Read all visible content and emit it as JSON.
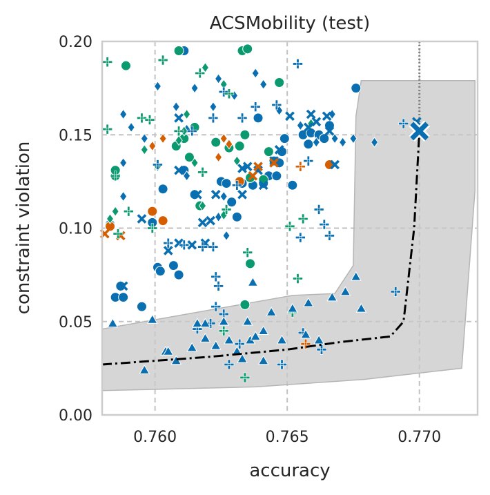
{
  "chart_data": {
    "type": "scatter",
    "title": "ACSMobility (test)",
    "xlabel": "accuracy",
    "ylabel": "constraint violation",
    "xlim": [
      0.758,
      0.7722
    ],
    "ylim": [
      0.0,
      0.2
    ],
    "xticks": [
      "0.760",
      "0.765",
      "0.770"
    ],
    "yticks": [
      "0.00",
      "0.05",
      "0.10",
      "0.15",
      "0.20"
    ],
    "grid": true,
    "legend": "none",
    "colors": {
      "blue": "#0a6fb0",
      "green": "#0b9a70",
      "orange": "#d45e00",
      "band": "#c8c8c8",
      "frontier": "#000000"
    },
    "band": [
      [
        0.758,
        0.013
      ],
      [
        0.7638,
        0.015
      ],
      [
        0.7679,
        0.019
      ],
      [
        0.7716,
        0.025
      ],
      [
        0.7721,
        0.12
      ],
      [
        0.7721,
        0.179
      ],
      [
        0.7678,
        0.179
      ],
      [
        0.7676,
        0.16
      ],
      [
        0.7675,
        0.08
      ],
      [
        0.7668,
        0.065
      ],
      [
        0.7652,
        0.064
      ],
      [
        0.758,
        0.046
      ]
    ],
    "frontier": [
      [
        0.758,
        0.027
      ],
      [
        0.762,
        0.031
      ],
      [
        0.765,
        0.035
      ],
      [
        0.767,
        0.039
      ],
      [
        0.7689,
        0.042
      ],
      [
        0.7694,
        0.05
      ],
      [
        0.7698,
        0.1
      ],
      [
        0.77,
        0.152
      ]
    ],
    "vline_x": 0.77,
    "highlight": [
      0.77,
      0.152
    ],
    "series": [
      {
        "color": "blue",
        "marker": "circle",
        "points": [
          [
            0.7611,
            0.195
          ],
          [
            0.7676,
            0.175
          ],
          [
            0.7583,
            0.102
          ],
          [
            0.7585,
            0.063
          ],
          [
            0.7587,
            0.069
          ],
          [
            0.7588,
            0.063
          ],
          [
            0.7595,
            0.058
          ],
          [
            0.7599,
            0.103
          ],
          [
            0.7601,
            0.079
          ],
          [
            0.7602,
            0.077
          ],
          [
            0.7603,
            0.121
          ],
          [
            0.7607,
            0.08
          ],
          [
            0.7609,
            0.075
          ],
          [
            0.7611,
            0.131
          ],
          [
            0.7615,
            0.118
          ],
          [
            0.7625,
            0.125
          ],
          [
            0.7627,
            0.124
          ],
          [
            0.7629,
            0.114
          ],
          [
            0.7631,
            0.106
          ],
          [
            0.7633,
            0.124
          ],
          [
            0.7637,
            0.123
          ],
          [
            0.7639,
            0.159
          ],
          [
            0.7641,
            0.124
          ],
          [
            0.7643,
            0.128
          ],
          [
            0.7645,
            0.136
          ],
          [
            0.7646,
            0.128
          ],
          [
            0.7647,
            0.135
          ],
          [
            0.7648,
            0.141
          ],
          [
            0.7649,
            0.148
          ],
          [
            0.7652,
            0.123
          ],
          [
            0.7656,
            0.15
          ],
          [
            0.7658,
            0.145
          ],
          [
            0.7659,
            0.151
          ],
          [
            0.7662,
            0.15
          ],
          [
            0.7664,
            0.148
          ],
          [
            0.7666,
            0.155
          ]
        ]
      },
      {
        "color": "green",
        "marker": "circle",
        "points": [
          [
            0.7589,
            0.187
          ],
          [
            0.7609,
            0.195
          ],
          [
            0.7633,
            0.195
          ],
          [
            0.7635,
            0.196
          ],
          [
            0.7647,
            0.178
          ],
          [
            0.7585,
            0.128
          ],
          [
            0.7585,
            0.131
          ],
          [
            0.7608,
            0.144
          ],
          [
            0.7611,
            0.148
          ],
          [
            0.7615,
            0.154
          ],
          [
            0.7613,
            0.138
          ],
          [
            0.7617,
            0.112
          ],
          [
            0.7623,
            0.146
          ],
          [
            0.7628,
            0.143
          ],
          [
            0.7632,
            0.144
          ],
          [
            0.7634,
            0.15
          ],
          [
            0.7636,
            0.127
          ],
          [
            0.7641,
            0.126
          ],
          [
            0.7643,
            0.141
          ],
          [
            0.7634,
            0.059
          ],
          [
            0.7636,
            0.081
          ]
        ]
      },
      {
        "color": "orange",
        "marker": "circle",
        "points": [
          [
            0.7583,
            0.101
          ],
          [
            0.7599,
            0.109
          ],
          [
            0.7603,
            0.104
          ],
          [
            0.7632,
            0.125
          ],
          [
            0.7666,
            0.134
          ]
        ]
      },
      {
        "color": "blue",
        "marker": "diamond",
        "points": [
          [
            0.7588,
            0.161
          ],
          [
            0.7591,
            0.154
          ],
          [
            0.7596,
            0.148
          ],
          [
            0.7601,
            0.176
          ],
          [
            0.7608,
            0.165
          ],
          [
            0.7612,
            0.153
          ],
          [
            0.7615,
            0.175
          ],
          [
            0.7622,
            0.165
          ],
          [
            0.7624,
            0.18
          ],
          [
            0.763,
            0.171
          ],
          [
            0.7638,
            0.183
          ],
          [
            0.7641,
            0.177
          ],
          [
            0.7647,
            0.163
          ],
          [
            0.7655,
            0.155
          ],
          [
            0.7661,
            0.146
          ],
          [
            0.7667,
            0.161
          ],
          [
            0.7671,
            0.146
          ],
          [
            0.7675,
            0.148
          ],
          [
            0.7683,
            0.146
          ],
          [
            0.7588,
            0.117
          ],
          [
            0.7612,
            0.128
          ],
          [
            0.7626,
            0.117
          ],
          [
            0.7627,
            0.096
          ],
          [
            0.7624,
            0.106
          ],
          [
            0.7588,
            0.135
          ],
          [
            0.7668,
            0.148
          ]
        ]
      },
      {
        "color": "green",
        "marker": "diamond",
        "points": [
          [
            0.7619,
            0.186
          ],
          [
            0.7626,
            0.177
          ],
          [
            0.7612,
            0.161
          ],
          [
            0.7611,
            0.152
          ],
          [
            0.7615,
            0.135
          ],
          [
            0.7609,
            0.147
          ],
          [
            0.7631,
            0.136
          ],
          [
            0.7618,
            0.112
          ],
          [
            0.7626,
            0.107
          ],
          [
            0.7596,
            0.142
          ],
          [
            0.7601,
            0.133
          ],
          [
            0.7583,
            0.105
          ],
          [
            0.7585,
            0.109
          ],
          [
            0.7659,
            0.156
          ]
        ]
      },
      {
        "color": "orange",
        "marker": "diamond",
        "points": [
          [
            0.7599,
            0.144
          ],
          [
            0.7603,
            0.148
          ],
          [
            0.7626,
            0.148
          ],
          [
            0.7628,
            0.145
          ],
          [
            0.7624,
            0.138
          ]
        ]
      },
      {
        "color": "blue",
        "marker": "x",
        "points": [
          [
            0.7609,
            0.131
          ],
          [
            0.7616,
            0.118
          ],
          [
            0.7618,
            0.103
          ],
          [
            0.7621,
            0.104
          ],
          [
            0.7623,
            0.118
          ],
          [
            0.7633,
            0.118
          ],
          [
            0.7635,
            0.133
          ],
          [
            0.7639,
            0.131
          ],
          [
            0.7641,
            0.123
          ],
          [
            0.7645,
            0.136
          ],
          [
            0.7647,
            0.142
          ],
          [
            0.7651,
            0.16
          ],
          [
            0.7658,
            0.154
          ],
          [
            0.7661,
            0.157
          ],
          [
            0.7665,
            0.16
          ],
          [
            0.7666,
            0.152
          ],
          [
            0.7668,
            0.134
          ],
          [
            0.7699,
            0.157
          ],
          [
            0.7605,
            0.088
          ],
          [
            0.7609,
            0.092
          ],
          [
            0.7614,
            0.091
          ],
          [
            0.7619,
            0.092
          ],
          [
            0.7588,
            0.069
          ],
          [
            0.7595,
            0.105
          ],
          [
            0.7633,
            0.132
          ],
          [
            0.7609,
            0.159
          ],
          [
            0.7659,
            0.161
          ]
        ]
      },
      {
        "color": "orange",
        "marker": "x",
        "points": [
          [
            0.7581,
            0.097
          ],
          [
            0.7587,
            0.096
          ],
          [
            0.7639,
            0.133
          ],
          [
            0.7645,
            0.135
          ],
          [
            0.7637,
            0.128
          ]
        ]
      },
      {
        "color": "blue",
        "marker": "plus",
        "points": [
          [
            0.7601,
            0.134
          ],
          [
            0.7614,
            0.152
          ],
          [
            0.7622,
            0.159
          ],
          [
            0.7626,
            0.173
          ],
          [
            0.7633,
            0.159
          ],
          [
            0.7638,
            0.165
          ],
          [
            0.7646,
            0.166
          ],
          [
            0.7654,
            0.188
          ],
          [
            0.7658,
            0.136
          ],
          [
            0.7662,
            0.11
          ],
          [
            0.7664,
            0.102
          ],
          [
            0.7666,
            0.096
          ],
          [
            0.7605,
            0.092
          ],
          [
            0.7611,
            0.091
          ],
          [
            0.7618,
            0.09
          ],
          [
            0.7622,
            0.09
          ],
          [
            0.7623,
            0.074
          ],
          [
            0.7624,
            0.069
          ],
          [
            0.7623,
            0.058
          ],
          [
            0.7626,
            0.054
          ],
          [
            0.7621,
            0.049
          ],
          [
            0.7616,
            0.046
          ],
          [
            0.7632,
            0.038
          ],
          [
            0.7628,
            0.027
          ],
          [
            0.7648,
            0.027
          ],
          [
            0.7663,
            0.035
          ],
          [
            0.7694,
            0.156
          ],
          [
            0.7701,
            0.151
          ],
          [
            0.7691,
            0.066
          ],
          [
            0.7656,
            0.044
          ],
          [
            0.7655,
            0.095
          ],
          [
            0.7631,
            0.123
          ]
        ]
      },
      {
        "color": "green",
        "marker": "plus",
        "points": [
          [
            0.7582,
            0.189
          ],
          [
            0.7603,
            0.19
          ],
          [
            0.7617,
            0.183
          ],
          [
            0.7628,
            0.172
          ],
          [
            0.7582,
            0.153
          ],
          [
            0.7595,
            0.159
          ],
          [
            0.7598,
            0.158
          ],
          [
            0.7609,
            0.152
          ],
          [
            0.7618,
            0.13
          ],
          [
            0.7627,
            0.11
          ],
          [
            0.7585,
            0.128
          ],
          [
            0.759,
            0.109
          ],
          [
            0.7586,
            0.097
          ],
          [
            0.7599,
            0.1
          ],
          [
            0.7651,
            0.101
          ],
          [
            0.7656,
            0.105
          ],
          [
            0.7635,
            0.087
          ],
          [
            0.7654,
            0.073
          ],
          [
            0.7652,
            0.055
          ],
          [
            0.7634,
            0.02
          ],
          [
            0.7626,
            0.045
          ]
        ]
      },
      {
        "color": "orange",
        "marker": "plus",
        "points": [
          [
            0.7655,
            0.133
          ],
          [
            0.7657,
            0.038
          ]
        ]
      },
      {
        "color": "blue",
        "marker": "triangle",
        "points": [
          [
            0.7584,
            0.049
          ],
          [
            0.7596,
            0.024
          ],
          [
            0.7599,
            0.051
          ],
          [
            0.7604,
            0.034
          ],
          [
            0.7608,
            0.029
          ],
          [
            0.7614,
            0.036
          ],
          [
            0.7616,
            0.049
          ],
          [
            0.7619,
            0.041
          ],
          [
            0.7623,
            0.037
          ],
          [
            0.7626,
            0.05
          ],
          [
            0.7628,
            0.04
          ],
          [
            0.7631,
            0.034
          ],
          [
            0.7633,
            0.03
          ],
          [
            0.7635,
            0.05
          ],
          [
            0.7636,
            0.04
          ],
          [
            0.7638,
            0.042
          ],
          [
            0.7641,
            0.045
          ],
          [
            0.7644,
            0.055
          ],
          [
            0.7648,
            0.04
          ],
          [
            0.7652,
            0.057
          ],
          [
            0.7658,
            0.06
          ],
          [
            0.7667,
            0.063
          ],
          [
            0.7672,
            0.066
          ],
          [
            0.7676,
            0.074
          ],
          [
            0.7678,
            0.057
          ],
          [
            0.7657,
            0.043
          ],
          [
            0.7641,
            0.029
          ],
          [
            0.7662,
            0.04
          ],
          [
            0.7637,
            0.071
          ],
          [
            0.7605,
            0.034
          ],
          [
            0.7619,
            0.049
          ]
        ]
      }
    ]
  }
}
